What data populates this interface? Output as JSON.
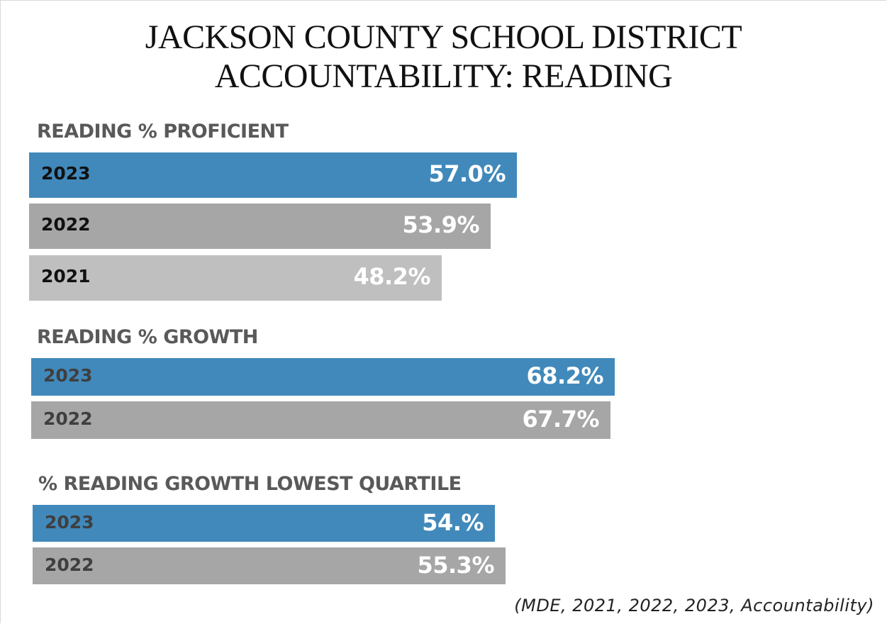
{
  "chart_data": {
    "type": "bar",
    "orientation": "horizontal",
    "title": "JACKSON COUNTY SCHOOL DISTRICT ACCOUNTABILITY: READING",
    "title_lines": [
      "JACKSON COUNTY SCHOOL DISTRICT",
      "ACCOUNTABILITY: READING"
    ],
    "source": "(MDE, 2021, 2022, 2023, Accountability)",
    "xlim": [
      0,
      100
    ],
    "grid": false,
    "groups": [
      {
        "label": "READING % PROFICIENT",
        "bars": [
          {
            "category": "2023",
            "value": 57.0,
            "value_label": "57.0%",
            "color": "#4189bb"
          },
          {
            "category": "2022",
            "value": 53.9,
            "value_label": "53.9%",
            "color": "#a6a6a6"
          },
          {
            "category": "2021",
            "value": 48.2,
            "value_label": "48.2%",
            "color": "#bfbfbf"
          }
        ]
      },
      {
        "label": "READING % GROWTH",
        "bars": [
          {
            "category": "2023",
            "value": 68.2,
            "value_label": "68.2%",
            "color": "#4189bb"
          },
          {
            "category": "2022",
            "value": 67.7,
            "value_label": "67.7%",
            "color": "#a6a6a6"
          }
        ]
      },
      {
        "label": "% READING GROWTH LOWEST QUARTILE",
        "bars": [
          {
            "category": "2023",
            "value": 54.0,
            "value_label": "54.%",
            "color": "#4189bb"
          },
          {
            "category": "2022",
            "value": 55.3,
            "value_label": "55.3%",
            "color": "#a6a6a6"
          }
        ]
      }
    ]
  }
}
